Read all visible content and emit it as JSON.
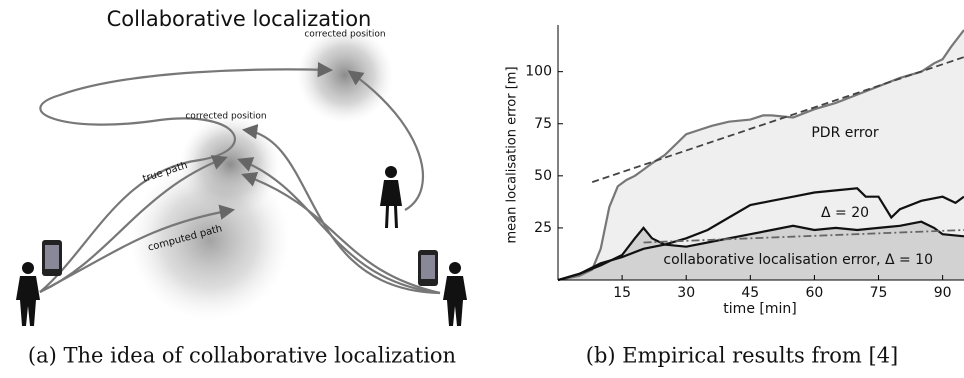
{
  "diagram": {
    "title": "Collaborative localization",
    "labels": [
      "corrected position",
      "corrected position",
      "true path",
      "computed path"
    ]
  },
  "captions": [
    "(a) The idea of collaborative localization",
    "(b) Empirical results from [4]"
  ],
  "chart_data": {
    "type": "line",
    "xlabel": "time [min]",
    "ylabel": "mean localisation error [m]",
    "xlim": [
      0,
      95
    ],
    "ylim": [
      0,
      120
    ],
    "xticks": [
      15,
      30,
      45,
      60,
      75,
      90
    ],
    "yticks": [
      25,
      50,
      75,
      100
    ],
    "annotations": [
      "PDR error",
      "Δ = 20",
      "collaborative localisation error, Δ = 10"
    ],
    "series": [
      {
        "color": "#777777",
        "fill": "#efefef",
        "x": [
          0,
          5,
          8,
          10,
          12,
          14,
          16,
          18,
          20,
          22,
          25,
          28,
          30,
          33,
          36,
          40,
          45,
          48,
          50,
          55,
          60,
          65,
          70,
          75,
          80,
          85,
          88,
          90,
          92,
          95
        ],
        "values": [
          0,
          2,
          5,
          15,
          35,
          45,
          48,
          50,
          53,
          56,
          60,
          66,
          70,
          72,
          74,
          76,
          77,
          79,
          79,
          78,
          82,
          85,
          89,
          93,
          97,
          100,
          104,
          106,
          112,
          120
        ]
      },
      {
        "color": "#444444",
        "dash": "7,4",
        "x": [
          8,
          95
        ],
        "values": [
          47,
          107
        ]
      },
      {
        "color": "#111111",
        "x": [
          0,
          5,
          10,
          15,
          20,
          25,
          30,
          35,
          40,
          45,
          50,
          55,
          60,
          65,
          70,
          72,
          75,
          78,
          80,
          85,
          90,
          93,
          95
        ],
        "values": [
          0,
          3,
          8,
          11,
          15,
          17,
          20,
          24,
          30,
          36,
          38,
          40,
          42,
          43,
          44,
          40,
          40,
          30,
          34,
          38,
          40,
          37,
          40
        ]
      },
      {
        "color": "#111111",
        "fill": "#d2d2d2",
        "x": [
          0,
          5,
          10,
          15,
          18,
          20,
          22,
          25,
          30,
          35,
          40,
          45,
          50,
          55,
          60,
          65,
          70,
          75,
          80,
          85,
          88,
          90,
          95
        ],
        "values": [
          0,
          3,
          7,
          12,
          20,
          25,
          20,
          17,
          16,
          18,
          20,
          22,
          24,
          26,
          24,
          25,
          24,
          25,
          26,
          28,
          25,
          22,
          21
        ]
      },
      {
        "color": "#666666",
        "dash": "8,3,2,3",
        "x": [
          20,
          95
        ],
        "values": [
          18,
          24
        ]
      }
    ]
  }
}
